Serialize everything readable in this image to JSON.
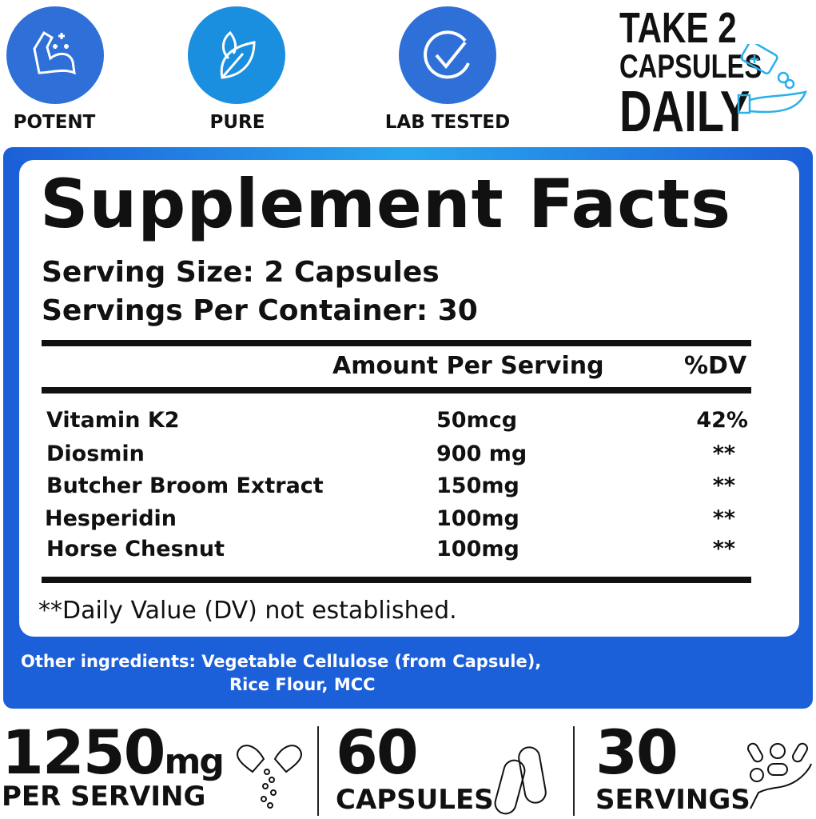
{
  "badges": [
    {
      "label": "POTENT",
      "icon": "flexed-arm-icon",
      "color": "#2f6fd8"
    },
    {
      "label": "PURE",
      "icon": "leaf-icon",
      "color": "#1a8fe0"
    },
    {
      "label": "LAB TESTED",
      "icon": "check-circle-icon",
      "color": "#2f6fd8"
    }
  ],
  "dosage": {
    "line1": "TAKE 2",
    "line2": "CAPSULES",
    "line3": "DAILY"
  },
  "facts": {
    "title": "Supplement Facts",
    "serving_size": "Serving Size: 2 Capsules",
    "servings_per_container": "Servings Per Container: 30",
    "col_amount": "Amount Per Serving",
    "col_dv": "%DV",
    "rows": [
      {
        "name": "Vitamin K2",
        "amount": "50mcg",
        "dv": "42%"
      },
      {
        "name": "Diosmin",
        "amount": "900 mg",
        "dv": "**"
      },
      {
        "name": "Butcher Broom Extract",
        "amount": "150mg",
        "dv": "**"
      },
      {
        "name": "Hesperidin",
        "amount": "100mg",
        "dv": "**"
      },
      {
        "name": "Horse Chesnut",
        "amount": "100mg",
        "dv": "**"
      }
    ],
    "footnote": "**Daily Value (DV) not established."
  },
  "other_ingredients": {
    "line1": "Other ingredients: Vegetable Cellulose (from Capsule),",
    "line2": "Rice Flour, MCC"
  },
  "stats": [
    {
      "value": "1250",
      "unit": "mg",
      "label": "PER SERVING"
    },
    {
      "value": "60",
      "label": "CAPSULES"
    },
    {
      "value": "30",
      "label": "SERVINGS"
    }
  ],
  "colors": {
    "panel": "#1b5fd9",
    "accent": "#2aa6ee"
  }
}
